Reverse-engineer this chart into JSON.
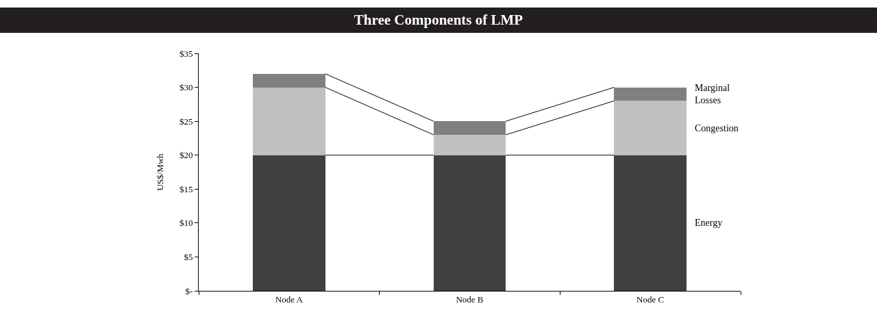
{
  "chart_data": {
    "type": "bar",
    "title": "Three Components of LMP",
    "ylabel": "US$/Mwh",
    "categories": [
      "Node A",
      "Node B",
      "Node C"
    ],
    "stacked": true,
    "series": [
      {
        "name": "Energy",
        "color": "#404040",
        "values": [
          20,
          20,
          20
        ]
      },
      {
        "name": "Congestion",
        "color": "#c0c0c0",
        "values": [
          10,
          3,
          8
        ]
      },
      {
        "name": "Marginal Losses",
        "color": "#808080",
        "values": [
          2,
          2,
          2
        ]
      }
    ],
    "ylim": [
      0,
      35
    ],
    "yticks": [
      {
        "value": 0,
        "label": "$-"
      },
      {
        "value": 5,
        "label": "$5"
      },
      {
        "value": 10,
        "label": "$10"
      },
      {
        "value": 15,
        "label": "$15"
      },
      {
        "value": 20,
        "label": "$20"
      },
      {
        "value": 25,
        "label": "$25"
      },
      {
        "value": 30,
        "label": "$30"
      },
      {
        "value": 35,
        "label": "$35"
      }
    ],
    "grid": false,
    "legend": false
  }
}
